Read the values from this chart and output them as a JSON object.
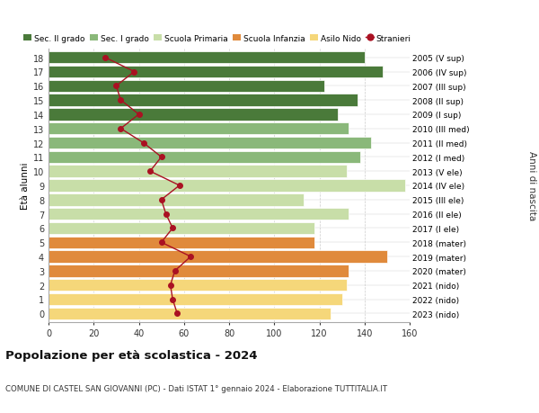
{
  "ages": [
    0,
    1,
    2,
    3,
    4,
    5,
    6,
    7,
    8,
    9,
    10,
    11,
    12,
    13,
    14,
    15,
    16,
    17,
    18
  ],
  "bar_values": [
    125,
    130,
    132,
    133,
    150,
    118,
    118,
    133,
    113,
    158,
    132,
    138,
    143,
    133,
    128,
    137,
    122,
    148,
    140
  ],
  "stranieri_values": [
    57,
    55,
    54,
    56,
    63,
    50,
    55,
    52,
    50,
    58,
    45,
    50,
    42,
    32,
    40,
    32,
    30,
    38,
    25
  ],
  "right_labels": [
    "2023 (nido)",
    "2022 (nido)",
    "2021 (nido)",
    "2020 (mater)",
    "2019 (mater)",
    "2018 (mater)",
    "2017 (I ele)",
    "2016 (II ele)",
    "2015 (III ele)",
    "2014 (IV ele)",
    "2013 (V ele)",
    "2012 (I med)",
    "2011 (II med)",
    "2010 (III med)",
    "2009 (I sup)",
    "2008 (II sup)",
    "2007 (III sup)",
    "2006 (IV sup)",
    "2005 (V sup)"
  ],
  "bar_colors": [
    "#f5d77a",
    "#f5d77a",
    "#f5d77a",
    "#e08a3c",
    "#e08a3c",
    "#e08a3c",
    "#c8dea8",
    "#c8dea8",
    "#c8dea8",
    "#c8dea8",
    "#c8dea8",
    "#8ab87a",
    "#8ab87a",
    "#8ab87a",
    "#4a7a3a",
    "#4a7a3a",
    "#4a7a3a",
    "#4a7a3a",
    "#4a7a3a"
  ],
  "legend_labels": [
    "Sec. II grado",
    "Sec. I grado",
    "Scuola Primaria",
    "Scuola Infanzia",
    "Asilo Nido",
    "Stranieri"
  ],
  "legend_colors": [
    "#4a7a3a",
    "#8ab87a",
    "#c8dea8",
    "#e08a3c",
    "#f5d77a",
    "#aa1122"
  ],
  "title": "Popolazione per età scolastica - 2024",
  "subtitle": "COMUNE DI CASTEL SAN GIOVANNI (PC) - Dati ISTAT 1° gennaio 2024 - Elaborazione TUTTITALIA.IT",
  "ylabel": "Età alunni",
  "right_ylabel": "Anni di nascita",
  "xlim": [
    0,
    160
  ],
  "xticks": [
    0,
    20,
    40,
    60,
    80,
    100,
    120,
    140,
    160
  ],
  "stranieri_color": "#aa1122",
  "bar_height": 0.85
}
